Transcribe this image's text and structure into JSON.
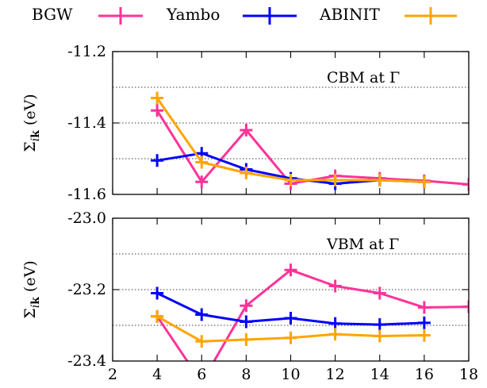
{
  "chart_data": [
    {
      "type": "line",
      "annotation": "CBM at Γ",
      "ylabel": "Σ_ik (eV)",
      "xlim": [
        2,
        18
      ],
      "ylim": [
        -11.6,
        -11.2
      ],
      "yticks": [
        -11.2,
        -11.4,
        -11.6
      ],
      "ytick_labels": [
        "-11.2",
        "-11.4",
        "-11.6"
      ],
      "grid": "horizontal dotted",
      "series": [
        {
          "name": "BGW",
          "color": "#ff3399",
          "x": [
            4,
            6,
            8,
            10,
            12,
            14,
            16,
            18
          ],
          "y": [
            -11.365,
            -11.565,
            -11.42,
            -11.57,
            -11.548,
            -11.555,
            -11.562,
            -11.572
          ]
        },
        {
          "name": "Yambo",
          "color": "#0000ff",
          "x": [
            4,
            6,
            8,
            10,
            12,
            14,
            16
          ],
          "y": [
            -11.505,
            -11.485,
            -11.53,
            -11.555,
            -11.57,
            -11.56,
            -11.565
          ]
        },
        {
          "name": "ABINIT",
          "color": "#ffa500",
          "x": [
            4,
            6,
            8,
            10,
            12,
            14,
            16
          ],
          "y": [
            -11.33,
            -11.51,
            -11.54,
            -11.56,
            -11.56,
            -11.56,
            -11.565
          ]
        }
      ]
    },
    {
      "type": "line",
      "annotation": "VBM at Γ",
      "ylabel": "Σ_ik (eV)",
      "xlim": [
        2,
        18
      ],
      "ylim": [
        -23.4,
        -23.0
      ],
      "xticks": [
        2,
        4,
        6,
        8,
        10,
        12,
        14,
        16,
        18
      ],
      "xtick_labels": [
        "2",
        "4",
        "6",
        "8",
        "10",
        "12",
        "14",
        "16",
        "18"
      ],
      "yticks": [
        -23.0,
        -23.2,
        -23.4
      ],
      "ytick_labels": [
        "-23.0",
        "-23.2",
        "-23.4"
      ],
      "grid": "horizontal dotted",
      "series": [
        {
          "name": "BGW",
          "color": "#ff3399",
          "x": [
            4,
            6,
            8,
            10,
            12,
            14,
            16,
            18
          ],
          "y": [
            -23.275,
            -23.46,
            -23.245,
            -23.145,
            -23.19,
            -23.21,
            -23.25,
            -23.248
          ]
        },
        {
          "name": "Yambo",
          "color": "#0000ff",
          "x": [
            4,
            6,
            8,
            10,
            12,
            14,
            16
          ],
          "y": [
            -23.21,
            -23.27,
            -23.29,
            -23.28,
            -23.295,
            -23.298,
            -23.293
          ]
        },
        {
          "name": "ABINIT",
          "color": "#ffa500",
          "x": [
            4,
            6,
            8,
            10,
            12,
            14,
            16
          ],
          "y": [
            -23.275,
            -23.345,
            -23.34,
            -23.335,
            -23.325,
            -23.33,
            -23.328
          ]
        }
      ]
    }
  ],
  "legend": {
    "placement": "top",
    "entries": [
      {
        "label": "BGW",
        "color": "#ff3399"
      },
      {
        "label": "Yambo",
        "color": "#0000ff"
      },
      {
        "label": "ABINIT",
        "color": "#ffa500"
      }
    ]
  }
}
